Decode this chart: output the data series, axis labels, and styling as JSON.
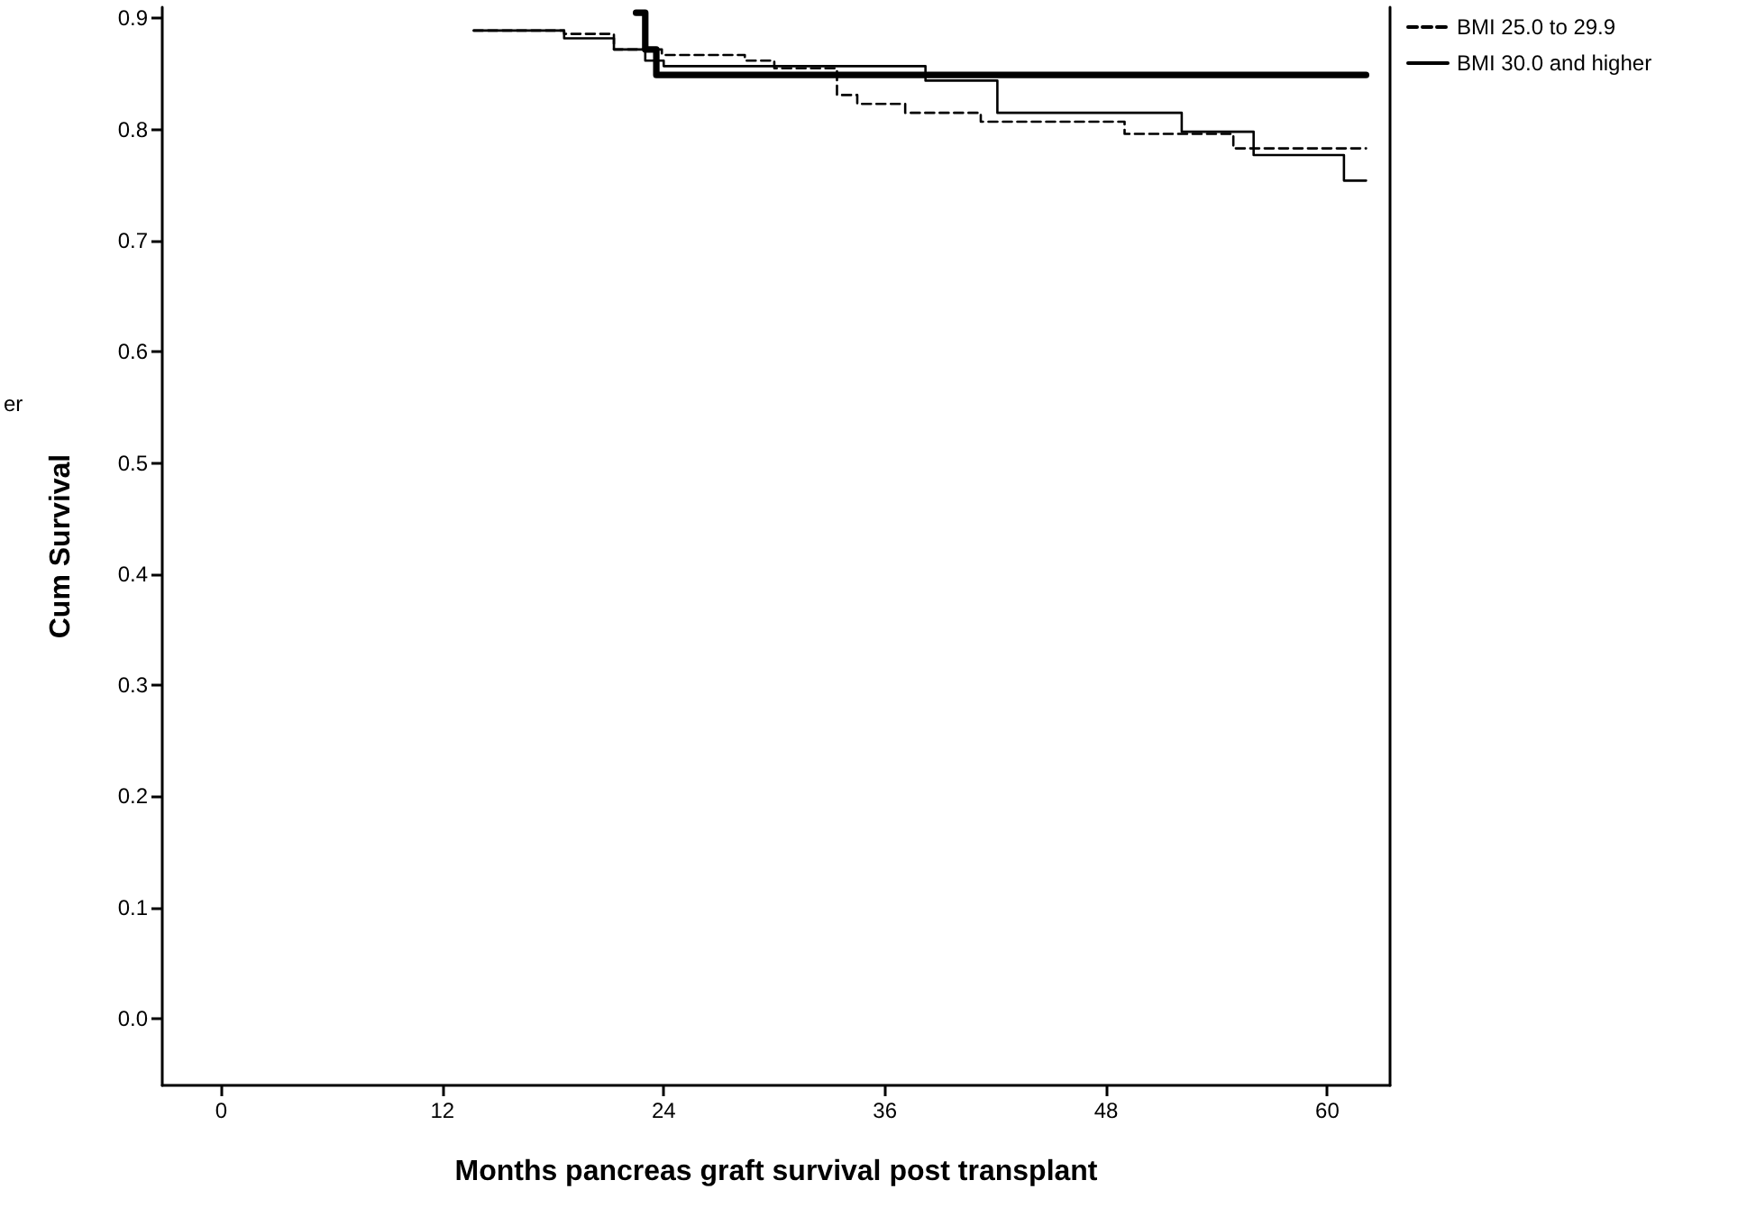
{
  "chart_data": {
    "type": "step",
    "xlabel": "Months pancreas graft survival post transplant",
    "ylabel": "Cum Survival",
    "annotations": [
      "er"
    ],
    "xlim": [
      -3.2,
      63.4
    ],
    "xticks": [
      0,
      12,
      24,
      36,
      48,
      60
    ],
    "ylim": [
      -0.06,
      0.91
    ],
    "yticks": [
      {
        "value": 0,
        "label": "0.0"
      },
      {
        "value": 0.1,
        "label": "0.1"
      },
      {
        "value": 0.2,
        "label": "0.2"
      },
      {
        "value": 0.3,
        "label": "0.3"
      },
      {
        "value": 0.4,
        "label": "0.4"
      },
      {
        "value": 0.5,
        "label": "0.5"
      },
      {
        "value": 0.6,
        "label": "0.6"
      },
      {
        "value": 0.7,
        "label": "0.7"
      },
      {
        "value": 0.8,
        "label": "0.8"
      },
      {
        "value": 0.9,
        "label": "0.9"
      }
    ],
    "series": [
      {
        "color": "#000000",
        "line_style": "solid",
        "x": [
          13.7,
          18.6,
          21.3,
          23.0,
          24.0,
          38.2,
          42.1,
          52.1,
          56.0,
          60.9,
          62.1
        ],
        "values": [
          0.889,
          0.882,
          0.872,
          0.862,
          0.857,
          0.844,
          0.815,
          0.798,
          0.777,
          0.754,
          0.754
        ]
      },
      {
        "name": "BMI 25.0 to 29.9",
        "color": "#000000",
        "line_style": "dashed",
        "x": [
          13.7,
          18.6,
          21.3,
          23.9,
          28.4,
          30.0,
          33.4,
          34.5,
          37.1,
          41.2,
          49.0,
          54.9,
          62.1
        ],
        "values": [
          0.889,
          0.886,
          0.872,
          0.867,
          0.862,
          0.855,
          0.831,
          0.823,
          0.815,
          0.807,
          0.796,
          0.783,
          0.783
        ]
      },
      {
        "name": "BMI 30.0 and higher",
        "color": "#000000",
        "line_style": "solid",
        "x": [
          22.5,
          23.0,
          23.6,
          62.1
        ],
        "values": [
          0.905,
          0.872,
          0.849,
          0.849
        ]
      }
    ],
    "grid": false,
    "legend": "top right"
  }
}
